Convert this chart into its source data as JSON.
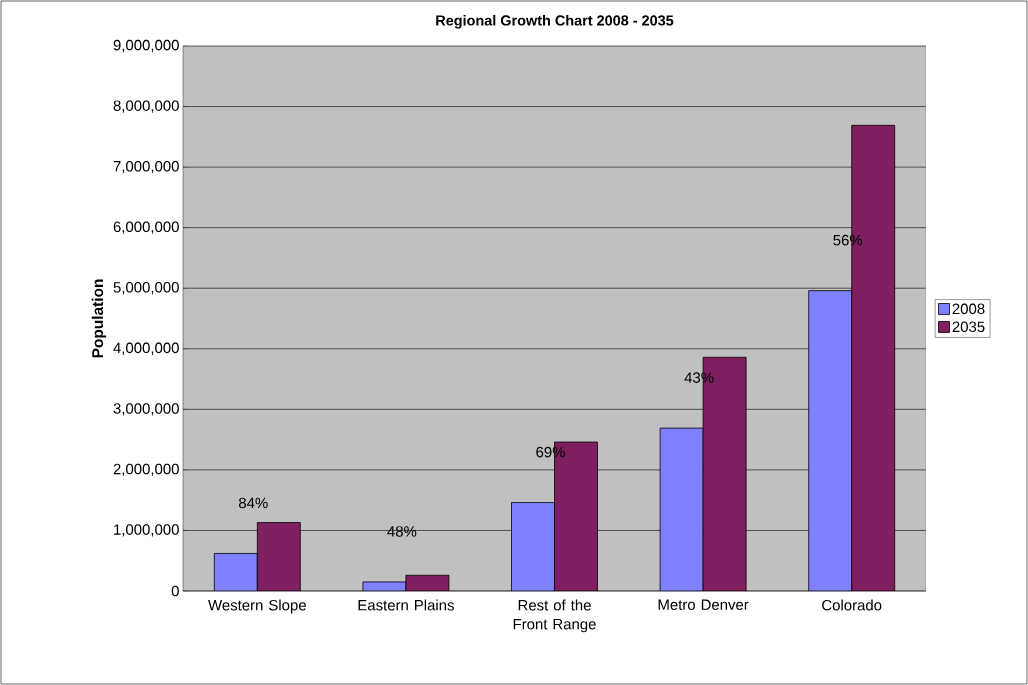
{
  "chart_data": {
    "type": "bar",
    "title": "Regional Growth Chart 2008 - 2035",
    "ylabel": "Population",
    "categories": [
      "Western Slope",
      "Eastern Plains",
      "Rest of the Front Range",
      "Metro Denver",
      "Colorado"
    ],
    "series": [
      {
        "name": "2008",
        "color": "#8080ff",
        "values": [
          620000,
          150000,
          1460000,
          2690000,
          4960000
        ]
      },
      {
        "name": "2035",
        "color": "#7f1f5f",
        "values": [
          1130000,
          260000,
          2460000,
          3860000,
          7690000
        ]
      }
    ],
    "ylim": [
      0,
      9000000
    ],
    "yticks": [
      0,
      {
        "value": 1000000,
        "label": "1,000,000"
      },
      {
        "value": 2000000,
        "label": "2,000,000"
      },
      {
        "value": 3000000,
        "label": "3,000,000"
      },
      {
        "value": 4000000,
        "label": "4,000,000"
      },
      {
        "value": 5000000,
        "label": "5,000,000"
      },
      {
        "value": 6000000,
        "label": "6,000,000"
      },
      {
        "value": 7000000,
        "label": "7,000,000"
      },
      {
        "value": 8000000,
        "label": "8,000,000"
      },
      {
        "value": 9000000,
        "label": "9,000,000"
      }
    ],
    "grid": "y",
    "legend": "right",
    "annotations": [
      "84%",
      "48%",
      "69%",
      "43%",
      "56%"
    ]
  }
}
